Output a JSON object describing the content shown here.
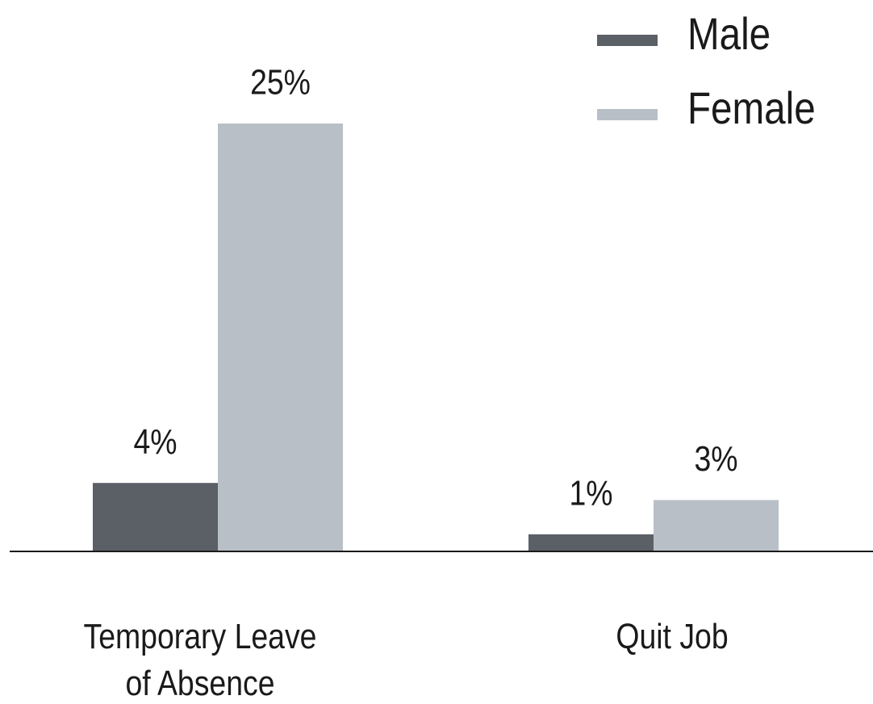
{
  "chart_data": {
    "type": "bar",
    "categories": [
      "Temporary Leave\nof Absence",
      "Quit Job"
    ],
    "series": [
      {
        "name": "Male",
        "color": "#5b5f66",
        "values": [
          4,
          1
        ],
        "value_labels": [
          "4%",
          "1%"
        ]
      },
      {
        "name": "Female",
        "color": "#b8bfc7",
        "values": [
          25,
          3
        ],
        "value_labels": [
          "25%",
          "3%"
        ]
      }
    ],
    "ylim": [
      0,
      25
    ],
    "legend": "upper right"
  }
}
